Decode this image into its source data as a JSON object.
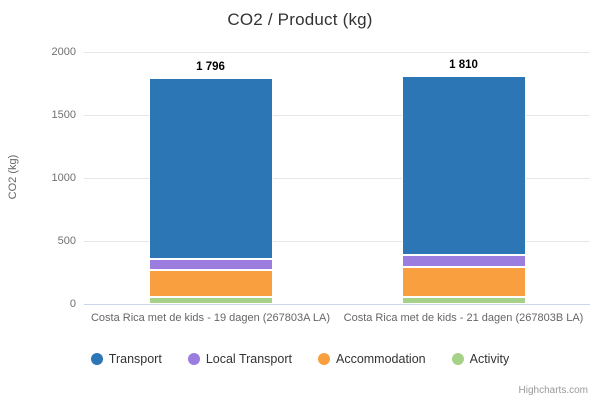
{
  "chart_data": {
    "type": "bar",
    "stacked": true,
    "title": "CO2 / Product (kg)",
    "xlabel": "",
    "ylabel": "CO2 (kg)",
    "ylim": [
      0,
      2000
    ],
    "yticks": [
      0,
      500,
      1000,
      1500,
      2000
    ],
    "grid": true,
    "legend_position": "bottom",
    "categories": [
      "Costa Rica met de kids - 19 dagen (267803A LA)",
      "Costa Rica met de kids - 21 dagen (267803B LA)"
    ],
    "series": [
      {
        "name": "Transport",
        "color": "#2d76b5",
        "values": [
          1440,
          1420
        ]
      },
      {
        "name": "Local Transport",
        "color": "#9b7de0",
        "values": [
          85,
          95
        ]
      },
      {
        "name": "Accommodation",
        "color": "#fa9f40",
        "values": [
          215,
          240
        ]
      },
      {
        "name": "Activity",
        "color": "#a6d189",
        "values": [
          56,
          55
        ]
      }
    ],
    "stack_order_bottom_to_top": [
      "Activity",
      "Accommodation",
      "Local Transport",
      "Transport"
    ],
    "totals": [
      1796,
      1810
    ],
    "total_labels": [
      "1 796",
      "1 810"
    ]
  },
  "colors": {
    "background": "#ffffff",
    "gridline": "#e6e6e6",
    "axis_line": "#ccd6eb",
    "title_text": "#333333",
    "axis_text": "#666666",
    "data_label_text": "#000000"
  },
  "credits": {
    "label": "Highcharts.com"
  }
}
